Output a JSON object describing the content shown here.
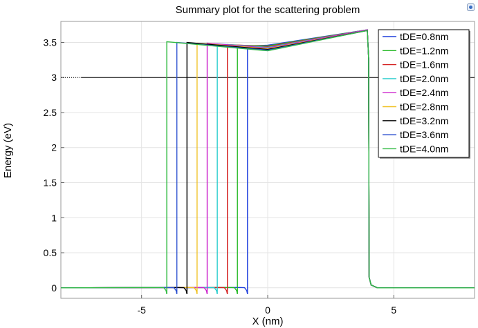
{
  "chart_data": {
    "type": "line",
    "title": "Summary plot for the scattering problem",
    "xlabel": "X (nm)",
    "ylabel": "Energy (eV)",
    "xlim": [
      -8.2,
      8.2
    ],
    "ylim": [
      -0.15,
      3.8
    ],
    "x_ticks": [
      -5,
      0,
      5
    ],
    "x_tick_labels": [
      "-5",
      "0",
      "5"
    ],
    "y_ticks": [
      0,
      0.5,
      1,
      1.5,
      2,
      2.5,
      3,
      3.5
    ],
    "y_tick_labels": [
      "0",
      "0.5",
      "1",
      "1.5",
      "2",
      "2.5",
      "3",
      "3.5"
    ],
    "grid": true,
    "legend": "top-right",
    "reference_energy": 3.0,
    "well_edge_x": 4.0,
    "series": [
      {
        "name": "tDE=0.8nm",
        "color": "#1f3fdc",
        "left_edge": -0.8,
        "peak_left": 3.45,
        "min_center": 3.46,
        "peak_right": 3.68
      },
      {
        "name": "tDE=1.2nm",
        "color": "#22b822",
        "left_edge": -1.2,
        "peak_left": 3.46,
        "min_center": 3.45,
        "peak_right": 3.68
      },
      {
        "name": "tDE=1.6nm",
        "color": "#d42020",
        "left_edge": -1.6,
        "peak_left": 3.47,
        "min_center": 3.44,
        "peak_right": 3.68
      },
      {
        "name": "tDE=2.0nm",
        "color": "#22cccc",
        "left_edge": -2.0,
        "peak_left": 3.48,
        "min_center": 3.43,
        "peak_right": 3.68
      },
      {
        "name": "tDE=2.4nm",
        "color": "#cc22cc",
        "left_edge": -2.4,
        "peak_left": 3.49,
        "min_center": 3.42,
        "peak_right": 3.68
      },
      {
        "name": "tDE=2.8nm",
        "color": "#f0c020",
        "left_edge": -2.8,
        "peak_left": 3.49,
        "min_center": 3.41,
        "peak_right": 3.67
      },
      {
        "name": "tDE=3.2nm",
        "color": "#000000",
        "left_edge": -3.2,
        "peak_left": 3.5,
        "min_center": 3.4,
        "peak_right": 3.67
      },
      {
        "name": "tDE=3.6nm",
        "color": "#2a4fcf",
        "left_edge": -3.6,
        "peak_left": 3.5,
        "min_center": 3.39,
        "peak_right": 3.67
      },
      {
        "name": "tDE=4.0nm",
        "color": "#33bb44",
        "left_edge": -4.0,
        "peak_left": 3.51,
        "min_center": 3.38,
        "peak_right": 3.67
      }
    ]
  }
}
